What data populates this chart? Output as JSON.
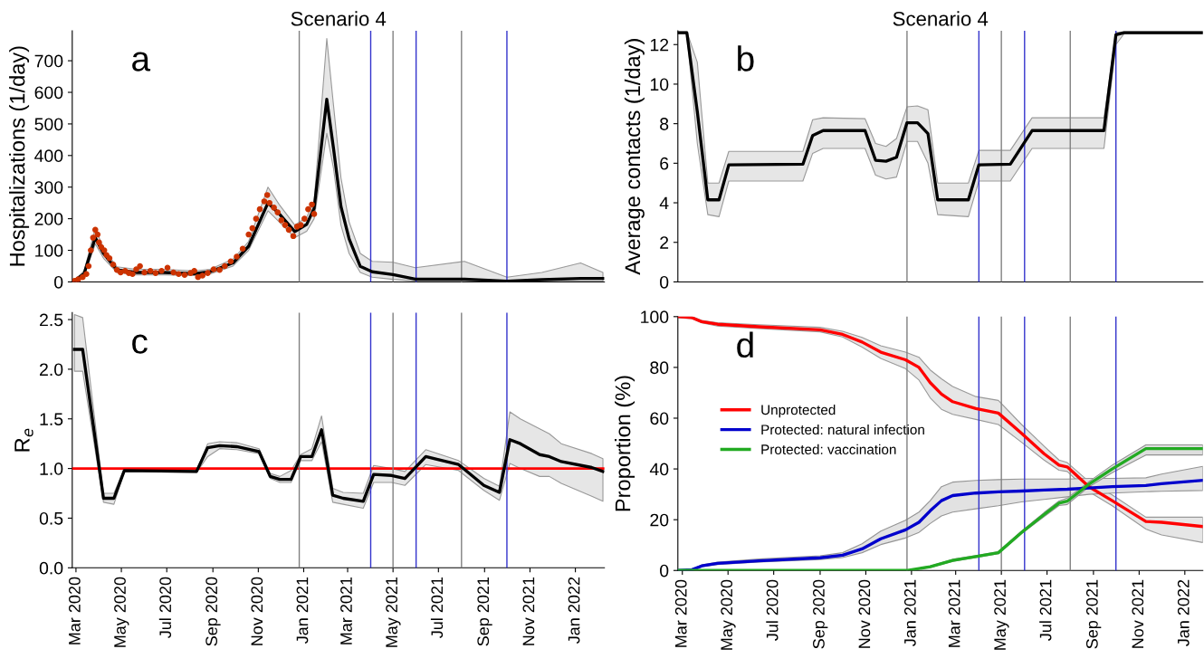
{
  "chart_data": [
    {
      "type": "line",
      "title": "Scenario 4",
      "ylabel": "Hospitalizations (1/day)",
      "annotations": [
        "a"
      ],
      "tick_labels": "y",
      "xlim": [
        "2020-02-25",
        "2022-02-09"
      ],
      "ylim": [
        0,
        795
      ],
      "yticks": [
        0,
        100,
        200,
        300,
        400,
        500,
        600,
        700
      ],
      "ref_lines": [
        {
          "axis": "x",
          "value": "2020-12-26",
          "color": "#808080"
        },
        {
          "axis": "x",
          "value": "2021-04-01",
          "color": "#3333cc"
        },
        {
          "axis": "x",
          "value": "2021-05-01",
          "color": "#808080"
        },
        {
          "axis": "x",
          "value": "2021-06-01",
          "color": "#3333cc"
        },
        {
          "axis": "x",
          "value": "2021-08-01",
          "color": "#808080"
        },
        {
          "axis": "x",
          "value": "2021-10-01",
          "color": "#3333cc"
        }
      ],
      "series": [
        {
          "type": "line",
          "color": "#000000",
          "x": [
            "2020-02-26",
            "2020-03-12",
            "2020-03-27",
            "2020-04-07",
            "2020-04-25",
            "2020-05-21",
            "2020-06-27",
            "2020-08-07",
            "2020-08-28",
            "2020-09-28",
            "2020-10-19",
            "2020-11-14",
            "2020-11-29",
            "2020-12-20",
            "2021-01-05",
            "2021-01-15",
            "2021-02-01",
            "2021-02-10",
            "2021-02-20",
            "2021-03-03",
            "2021-03-18",
            "2021-04-03",
            "2021-05-01",
            "2021-05-31",
            "2021-08-05",
            "2021-10-01",
            "2021-11-17",
            "2022-01-08",
            "2022-02-07"
          ],
          "values": [
            0,
            26,
            140,
            90,
            38,
            30,
            30,
            26,
            32,
            60,
            113,
            250,
            216,
            159,
            182,
            233,
            578,
            423,
            239,
            136,
            49,
            32,
            23,
            9,
            9,
            2,
            7,
            11,
            11
          ],
          "lower": [
            0,
            20,
            120,
            75,
            30,
            22,
            22,
            20,
            25,
            50,
            100,
            225,
            190,
            140,
            160,
            200,
            470,
            360,
            180,
            90,
            30,
            15,
            8,
            3,
            3,
            0,
            1,
            2,
            2
          ],
          "upper": [
            0,
            35,
            170,
            105,
            48,
            40,
            40,
            35,
            40,
            72,
            128,
            300,
            245,
            180,
            205,
            255,
            770,
            560,
            330,
            190,
            90,
            65,
            62,
            45,
            65,
            15,
            30,
            60,
            30
          ]
        },
        {
          "type": "scatter",
          "color": "#cc3300",
          "marker": "circle",
          "x": [
            "2020-02-28",
            "2020-03-04",
            "2020-03-10",
            "2020-03-15",
            "2020-03-18",
            "2020-03-21",
            "2020-03-24",
            "2020-03-27",
            "2020-03-30",
            "2020-04-01",
            "2020-04-04",
            "2020-04-08",
            "2020-04-11",
            "2020-04-15",
            "2020-04-20",
            "2020-04-25",
            "2020-04-30",
            "2020-05-06",
            "2020-05-11",
            "2020-05-16",
            "2020-05-21",
            "2020-05-26",
            "2020-06-01",
            "2020-06-09",
            "2020-06-16",
            "2020-06-24",
            "2020-07-02",
            "2020-07-10",
            "2020-07-17",
            "2020-07-25",
            "2020-08-02",
            "2020-08-07",
            "2020-08-12",
            "2020-08-18",
            "2020-08-25",
            "2020-09-02",
            "2020-09-10",
            "2020-09-17",
            "2020-09-25",
            "2020-10-03",
            "2020-10-11",
            "2020-10-19",
            "2020-10-24",
            "2020-10-29",
            "2020-11-03",
            "2020-11-09",
            "2020-11-13",
            "2020-11-16",
            "2020-11-22",
            "2020-11-27",
            "2020-12-02",
            "2020-12-07",
            "2020-12-12",
            "2020-12-18",
            "2020-12-23",
            "2020-12-28",
            "2021-01-02",
            "2021-01-07",
            "2021-01-12",
            "2021-01-15"
          ],
          "values": [
            3,
            8,
            15,
            25,
            50,
            100,
            140,
            165,
            150,
            125,
            110,
            100,
            85,
            75,
            55,
            38,
            30,
            35,
            28,
            25,
            40,
            50,
            30,
            35,
            28,
            35,
            45,
            30,
            25,
            22,
            28,
            35,
            15,
            20,
            28,
            40,
            38,
            50,
            65,
            80,
            105,
            150,
            170,
            200,
            230,
            255,
            275,
            250,
            235,
            220,
            195,
            180,
            165,
            145,
            175,
            180,
            200,
            230,
            245,
            215
          ]
        }
      ]
    },
    {
      "type": "line",
      "title": "Scenario 4",
      "ylabel": "Average contacts (1/day)",
      "annotations": [
        "b"
      ],
      "tick_labels": "y",
      "xlim": [
        "2020-02-24",
        "2022-01-25"
      ],
      "ylim": [
        0,
        12.7
      ],
      "yticks": [
        0,
        2,
        4,
        6,
        8,
        10,
        12
      ],
      "ref_lines": [
        {
          "axis": "x",
          "value": "2020-12-26",
          "color": "#808080"
        },
        {
          "axis": "x",
          "value": "2021-04-01",
          "color": "#3333cc"
        },
        {
          "axis": "x",
          "value": "2021-05-01",
          "color": "#808080"
        },
        {
          "axis": "x",
          "value": "2021-06-01",
          "color": "#3333cc"
        },
        {
          "axis": "x",
          "value": "2021-08-01",
          "color": "#808080"
        },
        {
          "axis": "x",
          "value": "2021-10-01",
          "color": "#3333cc"
        }
      ],
      "series": [
        {
          "type": "line",
          "color": "#000000",
          "x": [
            "2020-02-24",
            "2020-03-07",
            "2020-03-21",
            "2020-04-04",
            "2020-04-19",
            "2020-05-02",
            "2020-08-09",
            "2020-08-22",
            "2020-09-05",
            "2020-10-31",
            "2020-11-14",
            "2020-11-28",
            "2020-12-12",
            "2020-12-26",
            "2021-01-09",
            "2021-01-23",
            "2021-02-05",
            "2021-03-18",
            "2021-04-01",
            "2021-05-13",
            "2021-06-11",
            "2021-09-15",
            "2021-10-01",
            "2021-10-12",
            "2022-01-25"
          ],
          "values": [
            12.6,
            12.6,
            8.6,
            4.15,
            4.15,
            5.92,
            5.95,
            7.4,
            7.65,
            7.65,
            6.15,
            6.1,
            6.3,
            8.05,
            8.05,
            7.5,
            4.15,
            4.15,
            5.92,
            5.95,
            7.65,
            7.65,
            12.5,
            12.6,
            12.6
          ],
          "lower": [
            12.55,
            12.55,
            7.0,
            3.4,
            3.3,
            5.1,
            5.1,
            6.5,
            6.75,
            6.75,
            5.4,
            5.2,
            5.3,
            7.1,
            7.1,
            6.0,
            3.4,
            3.3,
            5.1,
            5.1,
            6.75,
            6.75,
            12.0,
            12.55,
            12.55
          ],
          "upper": [
            12.65,
            12.65,
            11.1,
            5.0,
            5.0,
            6.6,
            6.6,
            8.2,
            8.3,
            8.25,
            7.0,
            6.85,
            7.25,
            8.85,
            8.9,
            8.7,
            5.0,
            5.0,
            6.65,
            6.65,
            8.3,
            8.3,
            12.6,
            12.65,
            12.65
          ]
        }
      ]
    },
    {
      "type": "line",
      "ylabel": "R$_{e}$",
      "annotations": [
        "c"
      ],
      "xlim": [
        "2020-02-25",
        "2022-02-09"
      ],
      "ylim": [
        0,
        2.57
      ],
      "yticks": [
        {
          "value": 0,
          "label": "0.0"
        },
        {
          "value": 0.5,
          "label": "0.5"
        },
        {
          "value": 1,
          "label": "1.0"
        },
        {
          "value": 1.5,
          "label": "1.5"
        },
        {
          "value": 2,
          "label": "2.0"
        },
        {
          "value": 2.5,
          "label": "2.5"
        }
      ],
      "xticks": [
        {
          "value": "2020-03-01",
          "label": "Mar 2020"
        },
        {
          "value": "2020-05-01",
          "label": "May 2020"
        },
        {
          "value": "2020-07-01",
          "label": "Jul 2020"
        },
        {
          "value": "2020-09-01",
          "label": "Sep 2020"
        },
        {
          "value": "2020-11-01",
          "label": "Nov 2020"
        },
        {
          "value": "2021-01-01",
          "label": "Jan 2021"
        },
        {
          "value": "2021-03-01",
          "label": "Mar 2021"
        },
        {
          "value": "2021-05-01",
          "label": "May 2021"
        },
        {
          "value": "2021-07-01",
          "label": "Jul 2021"
        },
        {
          "value": "2021-09-01",
          "label": "Sep 2021"
        },
        {
          "value": "2021-11-01",
          "label": "Nov 2021"
        },
        {
          "value": "2022-01-01",
          "label": "Jan 2022"
        }
      ],
      "ref_lines": [
        {
          "axis": "y",
          "value": 1,
          "color": "#ff0000"
        },
        {
          "axis": "x",
          "value": "2020-12-26",
          "color": "#808080"
        },
        {
          "axis": "x",
          "value": "2021-04-01",
          "color": "#3333cc"
        },
        {
          "axis": "x",
          "value": "2021-05-01",
          "color": "#808080"
        },
        {
          "axis": "x",
          "value": "2021-06-01",
          "color": "#3333cc"
        },
        {
          "axis": "x",
          "value": "2021-08-01",
          "color": "#808080"
        },
        {
          "axis": "x",
          "value": "2021-10-01",
          "color": "#3333cc"
        }
      ],
      "series": [
        {
          "type": "line",
          "color": "#000000",
          "x": [
            "2020-02-28",
            "2020-03-10",
            "2020-04-07",
            "2020-04-21",
            "2020-05-05",
            "2020-08-10",
            "2020-08-25",
            "2020-09-10",
            "2020-10-03",
            "2020-11-02",
            "2020-11-17",
            "2020-11-30",
            "2020-12-15",
            "2020-12-28",
            "2021-01-12",
            "2021-01-25",
            "2021-02-09",
            "2021-02-23",
            "2021-03-22",
            "2021-04-05",
            "2021-04-29",
            "2021-05-17",
            "2021-06-14",
            "2021-07-28",
            "2021-08-31",
            "2021-09-21",
            "2021-10-05",
            "2021-10-19",
            "2021-11-14",
            "2021-11-27",
            "2021-12-13",
            "2022-01-23",
            "2022-02-07"
          ],
          "values": [
            2.2,
            2.2,
            0.7,
            0.7,
            0.98,
            0.97,
            1.21,
            1.23,
            1.22,
            1.17,
            0.92,
            0.89,
            0.89,
            1.12,
            1.12,
            1.39,
            0.73,
            0.7,
            0.67,
            0.94,
            0.93,
            0.9,
            1.12,
            1.04,
            0.83,
            0.76,
            1.29,
            1.25,
            1.14,
            1.12,
            1.07,
            1.01,
            0.97
          ],
          "lower": [
            1.98,
            1.98,
            0.66,
            0.64,
            0.97,
            0.96,
            1.12,
            1.2,
            1.19,
            1.15,
            0.9,
            0.86,
            0.86,
            1.08,
            1.08,
            1.27,
            0.66,
            0.64,
            0.6,
            0.86,
            0.86,
            0.83,
            1.04,
            0.98,
            0.78,
            0.68,
            1.05,
            1.0,
            0.92,
            0.92,
            0.85,
            0.72,
            0.67
          ],
          "upper": [
            2.55,
            2.52,
            0.75,
            0.75,
            1.0,
            0.98,
            1.25,
            1.27,
            1.26,
            1.2,
            0.95,
            0.92,
            0.98,
            1.14,
            1.2,
            1.53,
            0.8,
            0.76,
            0.75,
            1.03,
            1.0,
            0.97,
            1.19,
            1.08,
            0.9,
            0.82,
            1.57,
            1.5,
            1.4,
            1.35,
            1.25,
            1.15,
            1.1
          ]
        }
      ]
    },
    {
      "type": "line",
      "ylabel": "Proportion (%)",
      "annotations": [
        "d"
      ],
      "legend": "center left",
      "xlim": [
        "2020-02-24",
        "2022-01-25"
      ],
      "ylim": [
        0,
        100
      ],
      "yticks": [
        0,
        20,
        40,
        60,
        80,
        100
      ],
      "xticks": [
        {
          "value": "2020-03-01",
          "label": "Mar 2020"
        },
        {
          "value": "2020-05-01",
          "label": "May 2020"
        },
        {
          "value": "2020-07-01",
          "label": "Jul 2020"
        },
        {
          "value": "2020-09-01",
          "label": "Sep 2020"
        },
        {
          "value": "2020-11-01",
          "label": "Nov 2020"
        },
        {
          "value": "2021-01-01",
          "label": "Jan 2021"
        },
        {
          "value": "2021-03-01",
          "label": "Mar 2021"
        },
        {
          "value": "2021-05-01",
          "label": "May 2021"
        },
        {
          "value": "2021-07-01",
          "label": "Jul 2021"
        },
        {
          "value": "2021-09-01",
          "label": "Sep 2021"
        },
        {
          "value": "2021-11-01",
          "label": "Nov 2021"
        },
        {
          "value": "2022-01-01",
          "label": "Jan 2022"
        }
      ],
      "ref_lines": [
        {
          "axis": "x",
          "value": "2020-12-26",
          "color": "#808080"
        },
        {
          "axis": "x",
          "value": "2021-04-01",
          "color": "#3333cc"
        },
        {
          "axis": "x",
          "value": "2021-05-01",
          "color": "#808080"
        },
        {
          "axis": "x",
          "value": "2021-06-01",
          "color": "#3333cc"
        },
        {
          "axis": "x",
          "value": "2021-08-01",
          "color": "#808080"
        },
        {
          "axis": "x",
          "value": "2021-10-01",
          "color": "#3333cc"
        }
      ],
      "series": [
        {
          "type": "line",
          "name": "Unprotected",
          "color": "#ff0000",
          "x": [
            "2020-02-25",
            "2020-03-14",
            "2020-03-27",
            "2020-04-17",
            "2020-06-11",
            "2020-09-01",
            "2020-10-01",
            "2020-10-27",
            "2020-11-21",
            "2020-12-24",
            "2021-01-11",
            "2021-01-26",
            "2021-02-10",
            "2021-02-25",
            "2021-03-28",
            "2021-04-27",
            "2021-05-28",
            "2021-06-27",
            "2021-07-17",
            "2021-07-28",
            "2021-08-26",
            "2021-09-26",
            "2021-11-10",
            "2021-12-01",
            "2022-01-25"
          ],
          "values": [
            100,
            99.6,
            98,
            97,
            96,
            94.8,
            93,
            90,
            86,
            83,
            80,
            74,
            69.5,
            66.5,
            63.8,
            62,
            54,
            46,
            41.5,
            40.8,
            33,
            27.5,
            19.3,
            19,
            17.3
          ],
          "lower": [
            99.5,
            99.2,
            97.5,
            96.3,
            95.3,
            94,
            92,
            88,
            83.5,
            79.5,
            75,
            68,
            63.5,
            61.5,
            59.5,
            57.5,
            50.5,
            43.5,
            39.5,
            39,
            31,
            25.5,
            16.3,
            14,
            11
          ],
          "upper": [
            100,
            100,
            98.5,
            97.6,
            96.8,
            95.8,
            94.2,
            91.8,
            88.5,
            86,
            84,
            79,
            75.5,
            72.5,
            68.5,
            67,
            57.5,
            49,
            43.5,
            42.5,
            35,
            29.8,
            21,
            21,
            21
          ]
        },
        {
          "type": "line",
          "name": "Protected: natural infection",
          "color": "#0000cc",
          "x": [
            "2020-02-25",
            "2020-03-14",
            "2020-03-27",
            "2020-04-17",
            "2020-06-11",
            "2020-09-01",
            "2020-10-01",
            "2020-10-27",
            "2020-11-21",
            "2020-12-24",
            "2021-01-11",
            "2021-01-26",
            "2021-02-10",
            "2021-02-25",
            "2021-03-28",
            "2021-04-27",
            "2021-05-28",
            "2021-06-27",
            "2021-07-28",
            "2021-08-26",
            "2021-09-26",
            "2021-11-10",
            "2021-12-01",
            "2022-01-25"
          ],
          "values": [
            0,
            0.3,
            1.8,
            2.8,
            3.8,
            5,
            6,
            8.5,
            12.5,
            16,
            19,
            23.5,
            27.5,
            29.5,
            30.5,
            31,
            31.3,
            31.7,
            32,
            32.5,
            33,
            33.5,
            34.2,
            35.5
          ],
          "lower": [
            0,
            0,
            1.5,
            2.3,
            3.3,
            4.3,
            5.1,
            7,
            10.2,
            12.8,
            15,
            18.5,
            21.5,
            23,
            24.3,
            25.5,
            27,
            28,
            29,
            30,
            30.5,
            31,
            31.2,
            31.5
          ],
          "upper": [
            0,
            0.5,
            2.2,
            3.3,
            4.5,
            5.8,
            7,
            10.5,
            15.5,
            19.8,
            23,
            27.5,
            33,
            34.8,
            35.5,
            35.8,
            36,
            36,
            36,
            36.3,
            36.3,
            36.5,
            38,
            41
          ]
        },
        {
          "type": "line",
          "name": "Protected: vaccination",
          "color": "#22aa22",
          "x": [
            "2020-02-25",
            "2020-12-27",
            "2021-01-26",
            "2021-02-25",
            "2021-03-28",
            "2021-04-27",
            "2021-05-28",
            "2021-06-27",
            "2021-07-17",
            "2021-07-28",
            "2021-08-26",
            "2021-09-26",
            "2021-11-10",
            "2022-01-25"
          ],
          "values": [
            0,
            0,
            1.5,
            4,
            5.5,
            7,
            15,
            22,
            26.5,
            27.3,
            34,
            40,
            48,
            48
          ],
          "lower": [
            0,
            0,
            1.2,
            3.6,
            5.1,
            6.6,
            14.5,
            21.2,
            25.6,
            26,
            33,
            38.5,
            45.5,
            45.5
          ],
          "upper": [
            0,
            0,
            1.8,
            4.4,
            5.9,
            7.4,
            15.5,
            22.8,
            27.4,
            28.5,
            35,
            41.5,
            49.5,
            49.5
          ]
        }
      ]
    }
  ]
}
